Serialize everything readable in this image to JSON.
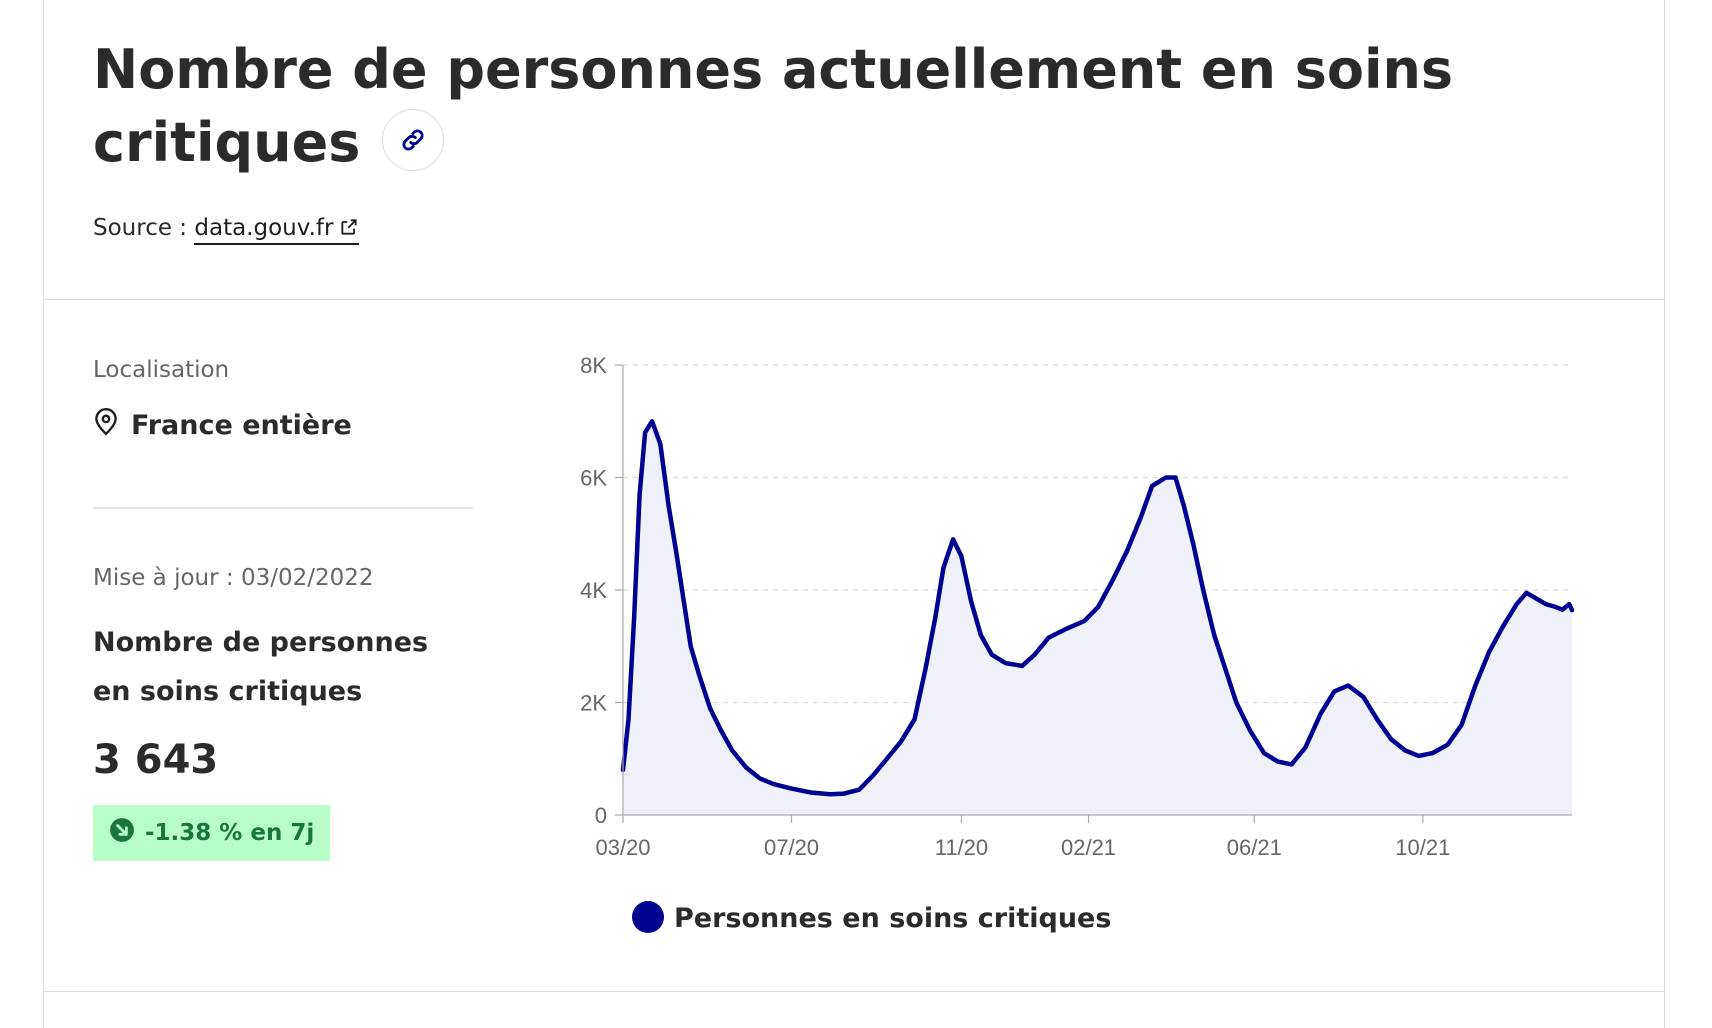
{
  "header": {
    "title": "Nombre de personnes actuellement en soins critiques",
    "source_label": "Source :",
    "source_link": "data.gouv.fr"
  },
  "sidebar": {
    "location_label": "Localisation",
    "location_value": "France entière",
    "updated": "Mise à jour : 03/02/2022",
    "metric_name": "Nombre de personnes en soins critiques",
    "metric_value": "3 643",
    "trend": "-1.38 % en 7j"
  },
  "icons": {
    "link": "link-icon",
    "external": "external-link-icon",
    "location": "map-pin-icon",
    "trend": "arrow-down-right-icon"
  },
  "colors": {
    "series": "#000091",
    "area_fill": "#f0f0f8",
    "badge_bg": "#b8fec9",
    "badge_text": "#18753c"
  },
  "chart_data": {
    "type": "area",
    "title": "",
    "xlabel": "",
    "ylabel": "",
    "ylim": [
      0,
      8000
    ],
    "xlim": [
      "2020-03-18",
      "2022-02-03"
    ],
    "y_ticks": [
      0,
      2000,
      4000,
      6000,
      8000
    ],
    "y_tick_labels": [
      "0",
      "2K",
      "4K",
      "6K",
      "8K"
    ],
    "x_ticks": [
      "2020-03-18",
      "2020-07-18",
      "2020-11-18",
      "2021-02-18",
      "2021-06-18",
      "2021-10-18"
    ],
    "x_tick_labels": [
      "03/20",
      "07/20",
      "11/20",
      "02/21",
      "06/21",
      "10/21"
    ],
    "grid": true,
    "legend_position": "bottom",
    "series": [
      {
        "name": "Personnes en soins critiques",
        "points": [
          [
            "2020-03-18",
            800
          ],
          [
            "2020-03-22",
            1700
          ],
          [
            "2020-03-26",
            3500
          ],
          [
            "2020-03-30",
            5700
          ],
          [
            "2020-04-03",
            6800
          ],
          [
            "2020-04-08",
            7000
          ],
          [
            "2020-04-14",
            6600
          ],
          [
            "2020-04-20",
            5500
          ],
          [
            "2020-04-26",
            4600
          ],
          [
            "2020-05-01",
            3800
          ],
          [
            "2020-05-06",
            3000
          ],
          [
            "2020-05-12",
            2500
          ],
          [
            "2020-05-20",
            1900
          ],
          [
            "2020-05-28",
            1500
          ],
          [
            "2020-06-05",
            1150
          ],
          [
            "2020-06-15",
            850
          ],
          [
            "2020-06-25",
            650
          ],
          [
            "2020-07-05",
            550
          ],
          [
            "2020-07-18",
            470
          ],
          [
            "2020-08-01",
            400
          ],
          [
            "2020-08-15",
            370
          ],
          [
            "2020-08-25",
            380
          ],
          [
            "2020-09-05",
            450
          ],
          [
            "2020-09-15",
            700
          ],
          [
            "2020-09-25",
            1000
          ],
          [
            "2020-10-05",
            1300
          ],
          [
            "2020-10-15",
            1700
          ],
          [
            "2020-10-23",
            2600
          ],
          [
            "2020-10-30",
            3500
          ],
          [
            "2020-11-05",
            4400
          ],
          [
            "2020-11-12",
            4900
          ],
          [
            "2020-11-18",
            4600
          ],
          [
            "2020-11-25",
            3800
          ],
          [
            "2020-12-02",
            3200
          ],
          [
            "2020-12-10",
            2850
          ],
          [
            "2020-12-20",
            2700
          ],
          [
            "2021-01-01",
            2650
          ],
          [
            "2021-01-10",
            2850
          ],
          [
            "2021-01-20",
            3150
          ],
          [
            "2021-02-01",
            3300
          ],
          [
            "2021-02-15",
            3450
          ],
          [
            "2021-02-25",
            3700
          ],
          [
            "2021-03-08",
            4200
          ],
          [
            "2021-03-18",
            4700
          ],
          [
            "2021-03-28",
            5300
          ],
          [
            "2021-04-05",
            5850
          ],
          [
            "2021-04-15",
            6000
          ],
          [
            "2021-04-22",
            6000
          ],
          [
            "2021-04-28",
            5500
          ],
          [
            "2021-05-05",
            4800
          ],
          [
            "2021-05-12",
            4000
          ],
          [
            "2021-05-20",
            3200
          ],
          [
            "2021-05-28",
            2600
          ],
          [
            "2021-06-05",
            2000
          ],
          [
            "2021-06-15",
            1500
          ],
          [
            "2021-06-25",
            1100
          ],
          [
            "2021-07-05",
            950
          ],
          [
            "2021-07-15",
            900
          ],
          [
            "2021-07-25",
            1200
          ],
          [
            "2021-08-05",
            1800
          ],
          [
            "2021-08-15",
            2200
          ],
          [
            "2021-08-25",
            2300
          ],
          [
            "2021-09-05",
            2100
          ],
          [
            "2021-09-15",
            1700
          ],
          [
            "2021-09-25",
            1350
          ],
          [
            "2021-10-05",
            1150
          ],
          [
            "2021-10-15",
            1050
          ],
          [
            "2021-10-25",
            1100
          ],
          [
            "2021-11-05",
            1250
          ],
          [
            "2021-11-15",
            1600
          ],
          [
            "2021-11-25",
            2300
          ],
          [
            "2021-12-05",
            2900
          ],
          [
            "2021-12-15",
            3350
          ],
          [
            "2021-12-25",
            3750
          ],
          [
            "2022-01-01",
            3950
          ],
          [
            "2022-01-08",
            3850
          ],
          [
            "2022-01-15",
            3750
          ],
          [
            "2022-01-22",
            3700
          ],
          [
            "2022-01-27",
            3650
          ],
          [
            "2022-02-01",
            3750
          ],
          [
            "2022-02-03",
            3643
          ]
        ]
      }
    ]
  }
}
